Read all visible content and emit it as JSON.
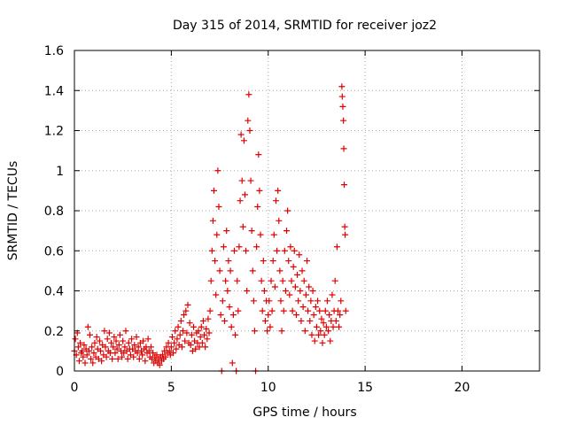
{
  "chart_data": {
    "type": "scatter",
    "title": "Day 315 of 2014, SRMTID for receiver joz2",
    "xlabel": "GPS time / hours",
    "ylabel": "SRMTID / TECUs",
    "xlim": [
      0,
      24
    ],
    "ylim": [
      0,
      1.6
    ],
    "xticks": [
      0,
      5,
      10,
      15,
      20
    ],
    "yticks": [
      0,
      0.2,
      0.4,
      0.6,
      0.8,
      1,
      1.2,
      1.4,
      1.6
    ],
    "xtick_labels": [
      "0",
      "5",
      "10",
      "15",
      "20"
    ],
    "ytick_labels": [
      "0",
      "0.2",
      "0.4",
      "0.6",
      "0.8",
      "1",
      "1.2",
      "1.4",
      "1.6"
    ],
    "grid": true,
    "marker": "+",
    "color": "#e00000",
    "series": [
      {
        "name": "joz2",
        "points": [
          [
            0.0,
            0.1
          ],
          [
            0.05,
            0.16
          ],
          [
            0.1,
            0.08
          ],
          [
            0.15,
            0.19
          ],
          [
            0.2,
            0.12
          ],
          [
            0.25,
            0.05
          ],
          [
            0.3,
            0.14
          ],
          [
            0.35,
            0.09
          ],
          [
            0.4,
            0.1
          ],
          [
            0.45,
            0.07
          ],
          [
            0.5,
            0.13
          ],
          [
            0.55,
            0.04
          ],
          [
            0.6,
            0.11
          ],
          [
            0.65,
            0.08
          ],
          [
            0.7,
            0.22
          ],
          [
            0.75,
            0.1
          ],
          [
            0.8,
            0.18
          ],
          [
            0.85,
            0.06
          ],
          [
            0.9,
            0.12
          ],
          [
            0.95,
            0.04
          ],
          [
            1.0,
            0.09
          ],
          [
            1.05,
            0.14
          ],
          [
            1.1,
            0.07
          ],
          [
            1.15,
            0.17
          ],
          [
            1.2,
            0.11
          ],
          [
            1.25,
            0.06
          ],
          [
            1.3,
            0.15
          ],
          [
            1.35,
            0.1
          ],
          [
            1.4,
            0.05
          ],
          [
            1.45,
            0.13
          ],
          [
            1.5,
            0.08
          ],
          [
            1.55,
            0.2
          ],
          [
            1.6,
            0.12
          ],
          [
            1.65,
            0.07
          ],
          [
            1.7,
            0.16
          ],
          [
            1.75,
            0.1
          ],
          [
            1.8,
            0.19
          ],
          [
            1.85,
            0.09
          ],
          [
            1.9,
            0.14
          ],
          [
            1.95,
            0.06
          ],
          [
            2.0,
            0.12
          ],
          [
            2.05,
            0.17
          ],
          [
            2.1,
            0.09
          ],
          [
            2.15,
            0.15
          ],
          [
            2.2,
            0.11
          ],
          [
            2.25,
            0.06
          ],
          [
            2.3,
            0.13
          ],
          [
            2.35,
            0.18
          ],
          [
            2.4,
            0.1
          ],
          [
            2.45,
            0.07
          ],
          [
            2.5,
            0.15
          ],
          [
            2.55,
            0.09
          ],
          [
            2.6,
            0.12
          ],
          [
            2.65,
            0.2
          ],
          [
            2.7,
            0.1
          ],
          [
            2.75,
            0.06
          ],
          [
            2.8,
            0.14
          ],
          [
            2.85,
            0.11
          ],
          [
            2.9,
            0.08
          ],
          [
            2.95,
            0.16
          ],
          [
            3.0,
            0.11
          ],
          [
            3.05,
            0.07
          ],
          [
            3.1,
            0.13
          ],
          [
            3.15,
            0.1
          ],
          [
            3.2,
            0.17
          ],
          [
            3.25,
            0.09
          ],
          [
            3.3,
            0.12
          ],
          [
            3.35,
            0.06
          ],
          [
            3.4,
            0.14
          ],
          [
            3.45,
            0.1
          ],
          [
            3.5,
            0.08
          ],
          [
            3.55,
            0.15
          ],
          [
            3.6,
            0.11
          ],
          [
            3.65,
            0.05
          ],
          [
            3.7,
            0.12
          ],
          [
            3.75,
            0.09
          ],
          [
            3.8,
            0.16
          ],
          [
            3.85,
            0.1
          ],
          [
            3.9,
            0.07
          ],
          [
            3.95,
            0.12
          ],
          [
            4.0,
            0.06
          ],
          [
            4.05,
            0.09
          ],
          [
            4.1,
            0.04
          ],
          [
            4.15,
            0.07
          ],
          [
            4.2,
            0.05
          ],
          [
            4.25,
            0.08
          ],
          [
            4.3,
            0.04
          ],
          [
            4.35,
            0.06
          ],
          [
            4.4,
            0.03
          ],
          [
            4.45,
            0.07
          ],
          [
            4.5,
            0.05
          ],
          [
            4.55,
            0.08
          ],
          [
            4.6,
            0.06
          ],
          [
            4.65,
            0.1
          ],
          [
            4.7,
            0.07
          ],
          [
            4.75,
            0.12
          ],
          [
            4.8,
            0.09
          ],
          [
            4.85,
            0.14
          ],
          [
            4.9,
            0.1
          ],
          [
            4.95,
            0.08
          ],
          [
            5.0,
            0.12
          ],
          [
            5.05,
            0.17
          ],
          [
            5.1,
            0.09
          ],
          [
            5.15,
            0.14
          ],
          [
            5.2,
            0.2
          ],
          [
            5.25,
            0.11
          ],
          [
            5.3,
            0.16
          ],
          [
            5.35,
            0.22
          ],
          [
            5.4,
            0.13
          ],
          [
            5.45,
            0.18
          ],
          [
            5.5,
            0.25
          ],
          [
            5.55,
            0.12
          ],
          [
            5.6,
            0.2
          ],
          [
            5.65,
            0.28
          ],
          [
            5.7,
            0.15
          ],
          [
            5.75,
            0.3
          ],
          [
            5.8,
            0.19
          ],
          [
            5.85,
            0.33
          ],
          [
            5.9,
            0.14
          ],
          [
            5.95,
            0.24
          ],
          [
            6.0,
            0.13
          ],
          [
            6.05,
            0.18
          ],
          [
            6.1,
            0.1
          ],
          [
            6.15,
            0.22
          ],
          [
            6.2,
            0.15
          ],
          [
            6.25,
            0.11
          ],
          [
            6.3,
            0.19
          ],
          [
            6.35,
            0.14
          ],
          [
            6.4,
            0.2
          ],
          [
            6.45,
            0.12
          ],
          [
            6.5,
            0.17
          ],
          [
            6.55,
            0.22
          ],
          [
            6.6,
            0.14
          ],
          [
            6.65,
            0.25
          ],
          [
            6.7,
            0.18
          ],
          [
            6.75,
            0.12
          ],
          [
            6.8,
            0.21
          ],
          [
            6.85,
            0.16
          ],
          [
            6.9,
            0.26
          ],
          [
            6.95,
            0.19
          ],
          [
            7.0,
            0.3
          ],
          [
            7.05,
            0.45
          ],
          [
            7.1,
            0.6
          ],
          [
            7.15,
            0.75
          ],
          [
            7.2,
            0.9
          ],
          [
            7.25,
            0.55
          ],
          [
            7.3,
            0.38
          ],
          [
            7.35,
            0.68
          ],
          [
            7.4,
            1.0
          ],
          [
            7.45,
            0.82
          ],
          [
            7.5,
            0.5
          ],
          [
            7.55,
            0.28
          ],
          [
            7.6,
            0.0
          ],
          [
            7.65,
            0.35
          ],
          [
            7.7,
            0.62
          ],
          [
            7.75,
            0.25
          ],
          [
            7.8,
            0.45
          ],
          [
            7.85,
            0.7
          ],
          [
            7.9,
            0.4
          ],
          [
            7.95,
            0.55
          ],
          [
            8.0,
            0.32
          ],
          [
            8.05,
            0.5
          ],
          [
            8.1,
            0.22
          ],
          [
            8.15,
            0.04
          ],
          [
            8.2,
            0.28
          ],
          [
            8.25,
            0.6
          ],
          [
            8.3,
            0.18
          ],
          [
            8.35,
            0.0
          ],
          [
            8.4,
            0.45
          ],
          [
            8.45,
            0.3
          ],
          [
            8.5,
            0.62
          ],
          [
            8.55,
            0.85
          ],
          [
            8.6,
            1.18
          ],
          [
            8.65,
            0.95
          ],
          [
            8.7,
            0.72
          ],
          [
            8.75,
            1.15
          ],
          [
            8.8,
            0.88
          ],
          [
            8.85,
            0.6
          ],
          [
            8.9,
            0.4
          ],
          [
            8.95,
            1.25
          ],
          [
            9.0,
            1.38
          ],
          [
            9.05,
            1.2
          ],
          [
            9.1,
            0.95
          ],
          [
            9.15,
            0.7
          ],
          [
            9.2,
            0.5
          ],
          [
            9.25,
            0.35
          ],
          [
            9.3,
            0.2
          ],
          [
            9.35,
            0.0
          ],
          [
            9.4,
            0.62
          ],
          [
            9.45,
            0.82
          ],
          [
            9.5,
            1.08
          ],
          [
            9.55,
            0.9
          ],
          [
            9.6,
            0.68
          ],
          [
            9.65,
            0.45
          ],
          [
            9.7,
            0.3
          ],
          [
            9.75,
            0.55
          ],
          [
            9.8,
            0.4
          ],
          [
            9.85,
            0.25
          ],
          [
            9.9,
            0.35
          ],
          [
            9.95,
            0.2
          ],
          [
            10.0,
            0.28
          ],
          [
            10.05,
            0.35
          ],
          [
            10.1,
            0.22
          ],
          [
            10.15,
            0.45
          ],
          [
            10.2,
            0.3
          ],
          [
            10.25,
            0.55
          ],
          [
            10.3,
            0.68
          ],
          [
            10.35,
            0.42
          ],
          [
            10.4,
            0.85
          ],
          [
            10.45,
            0.6
          ],
          [
            10.5,
            0.9
          ],
          [
            10.55,
            0.75
          ],
          [
            10.6,
            0.5
          ],
          [
            10.65,
            0.35
          ],
          [
            10.7,
            0.2
          ],
          [
            10.75,
            0.45
          ],
          [
            10.8,
            0.3
          ],
          [
            10.85,
            0.6
          ],
          [
            10.9,
            0.4
          ],
          [
            10.95,
            0.7
          ],
          [
            11.0,
            0.8
          ],
          [
            11.05,
            0.55
          ],
          [
            11.1,
            0.38
          ],
          [
            11.15,
            0.62
          ],
          [
            11.2,
            0.45
          ],
          [
            11.25,
            0.3
          ],
          [
            11.3,
            0.52
          ],
          [
            11.35,
            0.6
          ],
          [
            11.4,
            0.42
          ],
          [
            11.45,
            0.28
          ],
          [
            11.5,
            0.48
          ],
          [
            11.55,
            0.35
          ],
          [
            11.6,
            0.58
          ],
          [
            11.65,
            0.4
          ],
          [
            11.7,
            0.25
          ],
          [
            11.75,
            0.5
          ],
          [
            11.8,
            0.32
          ],
          [
            11.85,
            0.45
          ],
          [
            11.9,
            0.2
          ],
          [
            11.95,
            0.38
          ],
          [
            12.0,
            0.55
          ],
          [
            12.05,
            0.3
          ],
          [
            12.1,
            0.42
          ],
          [
            12.15,
            0.25
          ],
          [
            12.2,
            0.35
          ],
          [
            12.25,
            0.18
          ],
          [
            12.3,
            0.4
          ],
          [
            12.35,
            0.28
          ],
          [
            12.4,
            0.15
          ],
          [
            12.45,
            0.32
          ],
          [
            12.5,
            0.22
          ],
          [
            12.55,
            0.35
          ],
          [
            12.6,
            0.18
          ],
          [
            12.65,
            0.3
          ],
          [
            12.7,
            0.2
          ],
          [
            12.75,
            0.26
          ],
          [
            12.8,
            0.14
          ],
          [
            12.85,
            0.24
          ],
          [
            12.9,
            0.18
          ],
          [
            12.95,
            0.3
          ],
          [
            13.0,
            0.22
          ],
          [
            13.05,
            0.35
          ],
          [
            13.1,
            0.2
          ],
          [
            13.15,
            0.28
          ],
          [
            13.2,
            0.15
          ],
          [
            13.25,
            0.25
          ],
          [
            13.3,
            0.38
          ],
          [
            13.35,
            0.22
          ],
          [
            13.4,
            0.3
          ],
          [
            13.45,
            0.45
          ],
          [
            13.5,
            0.25
          ],
          [
            13.55,
            0.62
          ],
          [
            13.6,
            0.3
          ],
          [
            13.65,
            0.22
          ],
          [
            13.7,
            0.28
          ],
          [
            13.75,
            0.35
          ],
          [
            13.8,
            1.42
          ],
          [
            13.82,
            1.37
          ],
          [
            13.85,
            1.32
          ],
          [
            13.88,
            1.25
          ],
          [
            13.9,
            1.11
          ],
          [
            13.92,
            0.93
          ],
          [
            13.95,
            0.72
          ],
          [
            13.97,
            0.68
          ],
          [
            14.0,
            0.3
          ]
        ]
      }
    ]
  }
}
